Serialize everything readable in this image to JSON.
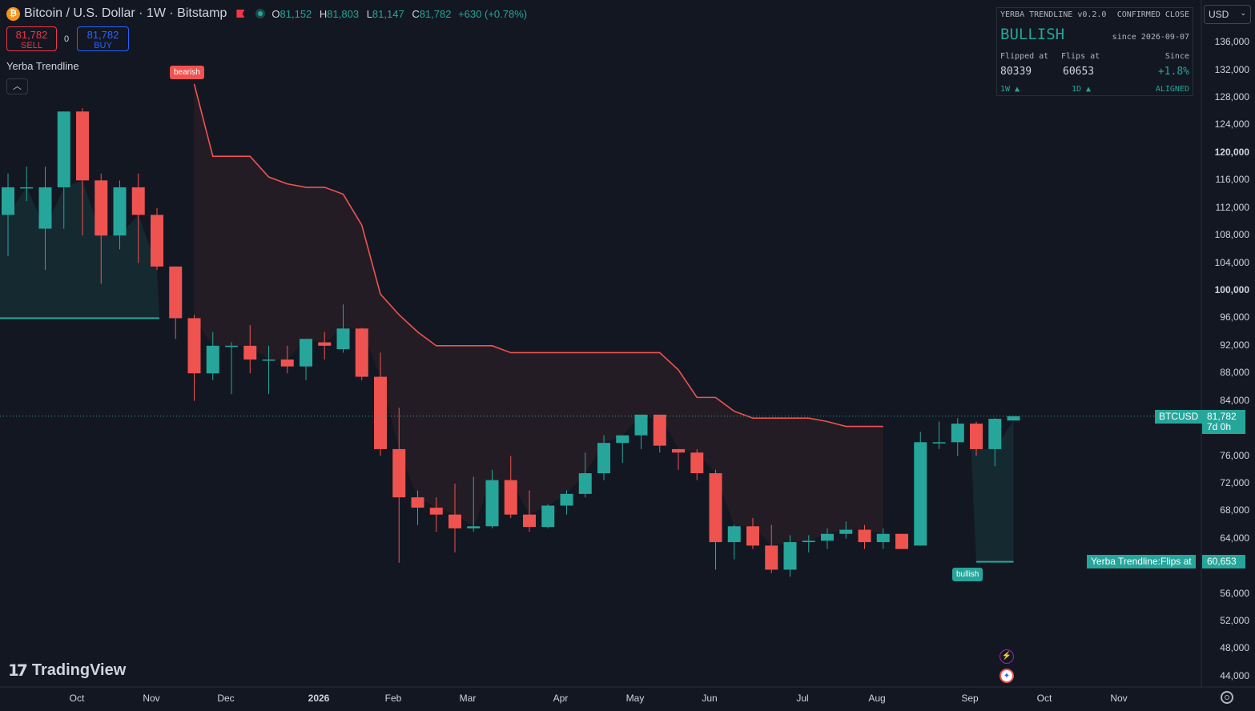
{
  "header": {
    "btc_icon": "₿",
    "symbol": "Bitcoin / U.S. Dollar · 1W · Bitstamp",
    "open_label": "O",
    "open": "81,152",
    "high_label": "H",
    "high": "81,803",
    "low_label": "L",
    "low": "81,147",
    "close_label": "C",
    "close": "81,782",
    "change": "+630 (+0.78%)"
  },
  "trade": {
    "sell_price": "81,782",
    "sell_label": "SELL",
    "spread": "0",
    "buy_price": "81,782",
    "buy_label": "BUY"
  },
  "indicator": {
    "name": "Yerba Trendline",
    "collapse_icon": "chevron-up-icon"
  },
  "logo": {
    "text": "TradingView"
  },
  "panel": {
    "title": "YERBA TRENDLINE v0.2.0",
    "mode": "CONFIRMED CLOSE",
    "state": "BULLISH",
    "since_date": "since 2026-09-07",
    "flipped_label": "Flipped at",
    "flips_label": "Flips at",
    "since_label": "Since",
    "flipped_value": "80339",
    "flips_value": "60653",
    "since_value": "+1.8%",
    "tf1": "1W ▲",
    "tf2": "1D ▲",
    "alignment": "ALIGNED"
  },
  "currency": {
    "selected": "USD"
  },
  "price_axis": [
    "136,000",
    "132,000",
    "128,000",
    "124,000",
    "120,000",
    "116,000",
    "112,000",
    "108,000",
    "104,000",
    "100,000",
    "96,000",
    "92,000",
    "88,000",
    "84,000",
    "76,000",
    "72,000",
    "68,000",
    "64,000",
    "56,000",
    "52,000",
    "48,000",
    "44,000"
  ],
  "time_axis": [
    "Oct",
    "Nov",
    "Dec",
    "2026",
    "Feb",
    "Mar",
    "Apr",
    "May",
    "Jun",
    "Jul",
    "Aug",
    "Sep",
    "Oct",
    "Nov"
  ],
  "last_price": {
    "symbol": "BTCUSD",
    "value": "81,782",
    "countdown": "7d 0h"
  },
  "flip_line": {
    "label": "Yerba Trendline:Flips at",
    "value": "60,653"
  },
  "markers": {
    "bearish": "bearish",
    "bullish": "bullish"
  },
  "colors": {
    "up": "#26a69a",
    "down": "#ef5350",
    "background": "#131722",
    "trend_bear": "#ef5350"
  },
  "chart_data": {
    "type": "candlestick",
    "interval": "1W",
    "columns": [
      "open",
      "high",
      "low",
      "close"
    ],
    "candles": [
      [
        111000,
        117000,
        105000,
        115000
      ],
      [
        115000,
        118000,
        113000,
        115000
      ],
      [
        109000,
        118000,
        103000,
        115000
      ],
      [
        115000,
        126000,
        109000,
        126000
      ],
      [
        126000,
        126500,
        108000,
        116000
      ],
      [
        116000,
        117000,
        101000,
        108000
      ],
      [
        108000,
        116000,
        106000,
        115000
      ],
      [
        115000,
        117000,
        104000,
        111000
      ],
      [
        111000,
        112000,
        103000,
        103500
      ],
      [
        103500,
        103500,
        93000,
        96000
      ],
      [
        96000,
        96500,
        84000,
        88000
      ],
      [
        88000,
        94000,
        87000,
        92000
      ],
      [
        92000,
        92500,
        85000,
        92000
      ],
      [
        92000,
        95000,
        88000,
        90000
      ],
      [
        90000,
        92000,
        85000,
        90000
      ],
      [
        90000,
        92000,
        88000,
        89000
      ],
      [
        89000,
        93000,
        87000,
        93000
      ],
      [
        92500,
        94000,
        90000,
        92000
      ],
      [
        91500,
        98000,
        91000,
        94500
      ],
      [
        94500,
        94600,
        87000,
        87500
      ],
      [
        87500,
        91000,
        76000,
        77000
      ],
      [
        77000,
        83000,
        60500,
        70000
      ],
      [
        70000,
        71000,
        66000,
        68500
      ],
      [
        68500,
        70000,
        65000,
        67500
      ],
      [
        67500,
        72000,
        62000,
        65500
      ],
      [
        65500,
        73000,
        65000,
        65800
      ],
      [
        65800,
        74000,
        65500,
        72500
      ],
      [
        72500,
        76000,
        67000,
        67500
      ],
      [
        67500,
        71000,
        65000,
        65700
      ],
      [
        65700,
        69000,
        65500,
        68800
      ],
      [
        68800,
        71000,
        67500,
        70500
      ],
      [
        70500,
        76500,
        70000,
        73500
      ],
      [
        73500,
        79000,
        72500,
        77900
      ],
      [
        77900,
        79000,
        75000,
        79000
      ],
      [
        79000,
        82000,
        77000,
        82000
      ],
      [
        82000,
        82000,
        76500,
        77500
      ],
      [
        77000,
        77000,
        74000,
        76500
      ],
      [
        76500,
        77000,
        72500,
        73500
      ],
      [
        73500,
        74000,
        59500,
        63500
      ],
      [
        63500,
        66000,
        61000,
        65800
      ],
      [
        65800,
        67000,
        62500,
        63000
      ],
      [
        63000,
        66000,
        59000,
        59500
      ],
      [
        59500,
        64500,
        58500,
        63500
      ],
      [
        63500,
        64500,
        62000,
        63700
      ],
      [
        63700,
        65500,
        62500,
        64700
      ],
      [
        64700,
        66500,
        64000,
        65300
      ],
      [
        65300,
        66000,
        62500,
        63500
      ],
      [
        63500,
        65500,
        62500,
        64700
      ],
      [
        64700,
        64700,
        62500,
        62500
      ],
      [
        63000,
        79500,
        63000,
        78000
      ],
      [
        78000,
        81000,
        77000,
        78000
      ],
      [
        78000,
        81500,
        76000,
        80700
      ],
      [
        80700,
        81000,
        76000,
        77000
      ],
      [
        77000,
        81500,
        74500,
        81400
      ],
      [
        81150,
        81800,
        81140,
        81780
      ]
    ],
    "trendline": {
      "bullish_level_start": 96000,
      "bearish": [
        130000,
        119500,
        119500,
        119500,
        116500,
        115500,
        115000,
        115000,
        114000,
        109500,
        99500,
        96500,
        94000,
        92000,
        92000,
        92000,
        92000,
        91000,
        91000,
        91000,
        91000,
        91000,
        91000,
        91000,
        91000,
        91000,
        88500,
        84500,
        84500,
        82500,
        81500,
        81500,
        81500,
        81500,
        81000,
        80300,
        80300,
        80300
      ],
      "flips_at": 60653
    },
    "ylim": [
      42000,
      139000
    ]
  }
}
